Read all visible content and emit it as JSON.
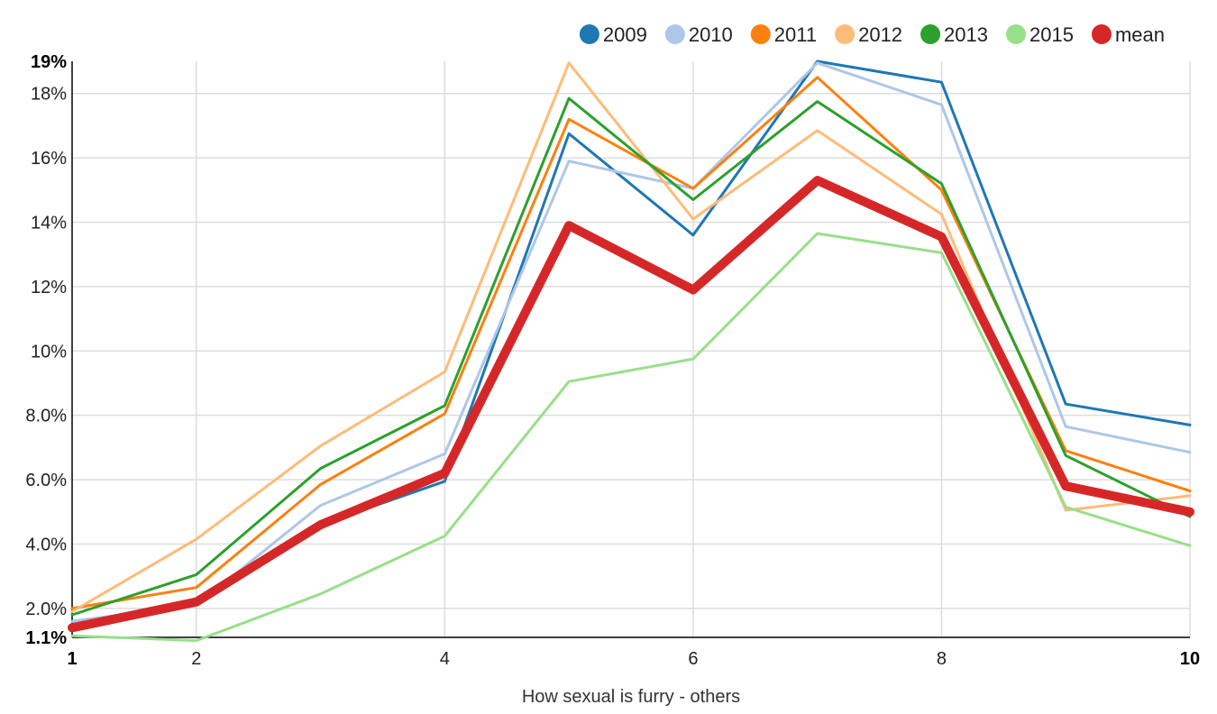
{
  "chart_data": {
    "type": "line",
    "xlabel": "How sexual is furry - others",
    "ylabel": "",
    "x": [
      1,
      2,
      3,
      4,
      5,
      6,
      7,
      8,
      9,
      10
    ],
    "xlim": [
      1,
      10
    ],
    "ylim": [
      1.1,
      19
    ],
    "x_ticks": [
      {
        "value": 1,
        "label": "1",
        "bold": true
      },
      {
        "value": 2,
        "label": "2",
        "bold": false
      },
      {
        "value": 4,
        "label": "4",
        "bold": false
      },
      {
        "value": 6,
        "label": "6",
        "bold": false
      },
      {
        "value": 8,
        "label": "8",
        "bold": false
      },
      {
        "value": 10,
        "label": "10",
        "bold": true
      }
    ],
    "y_ticks": [
      {
        "value": 1.1,
        "label": "1.1%",
        "bold": true
      },
      {
        "value": 2,
        "label": "2.0%",
        "bold": false
      },
      {
        "value": 4,
        "label": "4.0%",
        "bold": false
      },
      {
        "value": 6,
        "label": "6.0%",
        "bold": false
      },
      {
        "value": 8,
        "label": "8.0%",
        "bold": false
      },
      {
        "value": 10,
        "label": "10%",
        "bold": false
      },
      {
        "value": 12,
        "label": "12%",
        "bold": false
      },
      {
        "value": 14,
        "label": "14%",
        "bold": false
      },
      {
        "value": 16,
        "label": "16%",
        "bold": false
      },
      {
        "value": 18,
        "label": "18%",
        "bold": false
      },
      {
        "value": 19,
        "label": "19%",
        "bold": true
      }
    ],
    "grid": true,
    "legend_position": "top-right",
    "series": [
      {
        "name": "2009",
        "color": "#1f77b4",
        "width": 3,
        "values": [
          1.6,
          2.1,
          4.6,
          5.95,
          16.75,
          13.6,
          19.0,
          18.35,
          8.35,
          7.7
        ]
      },
      {
        "name": "2010",
        "color": "#aec7e8",
        "width": 3,
        "values": [
          1.6,
          2.1,
          5.2,
          6.8,
          15.9,
          15.05,
          18.95,
          17.65,
          7.65,
          6.85
        ]
      },
      {
        "name": "2011",
        "color": "#ff7f0e",
        "width": 3,
        "values": [
          2.0,
          2.65,
          5.85,
          8.05,
          17.2,
          15.05,
          18.5,
          15.0,
          6.9,
          5.65
        ]
      },
      {
        "name": "2012",
        "color": "#ffbb78",
        "width": 3,
        "values": [
          1.9,
          4.15,
          7.05,
          9.35,
          18.95,
          14.1,
          16.85,
          14.25,
          5.05,
          5.5
        ]
      },
      {
        "name": "2013",
        "color": "#2ca02c",
        "width": 3,
        "values": [
          1.8,
          3.05,
          6.35,
          8.3,
          17.85,
          14.7,
          17.75,
          15.2,
          6.75,
          4.85
        ]
      },
      {
        "name": "2015",
        "color": "#98df8a",
        "width": 3,
        "values": [
          1.15,
          1.0,
          2.45,
          4.25,
          9.05,
          9.75,
          13.65,
          13.05,
          5.15,
          3.95
        ]
      },
      {
        "name": "mean",
        "color": "#d62728",
        "width": 10,
        "values": [
          1.4,
          2.2,
          4.6,
          6.2,
          13.9,
          11.9,
          15.3,
          13.55,
          5.8,
          5.0
        ]
      }
    ]
  }
}
